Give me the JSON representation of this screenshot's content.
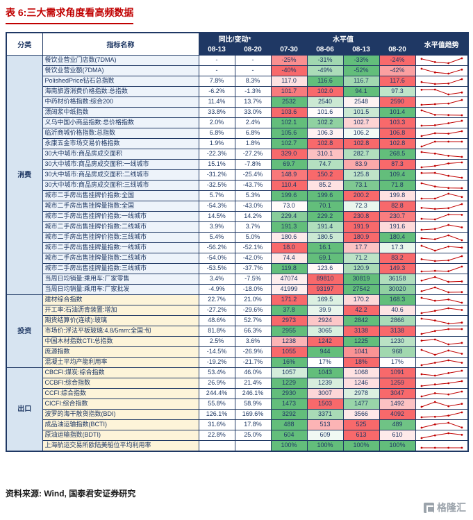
{
  "title": "表 6:三大需求角度看高频数据",
  "source_note": "资料来源: Wind, 国泰君安证券研究",
  "logo_text": "格隆汇",
  "header": {
    "category": "分类",
    "indicator": "指标名称",
    "yoy": "同比/变动*",
    "level": "水平值",
    "trend": "水平值趋势",
    "yoy_dates": [
      "08-13",
      "08-20"
    ],
    "level_dates": [
      "07-30",
      "08-06",
      "08-13",
      "08-20"
    ]
  },
  "colors": {
    "border": "#1F3864",
    "header_bg": "#1F3864",
    "title_red": "#C00000",
    "heat_max": "#F8696B",
    "heat_min": "#63BE7B",
    "spark": "#C00000"
  },
  "chart_data": {
    "type": "table",
    "columns": [
      "分类",
      "指标名称",
      "同比/变动 08-13",
      "同比/变动 08-20",
      "水平值 07-30",
      "水平值 08-06",
      "水平值 08-13",
      "水平值 08-20",
      "水平值趋势"
    ],
    "groups": [
      {
        "name": "消费",
        "cat_bg": "#D7E4F1",
        "row_bg": "#EDF3FA",
        "rows": [
          {
            "indicator": "餐饮业营业门店数(7DMA)",
            "yoy": [
              "-",
              "-"
            ],
            "levels": [
              "-25%",
              "-31%",
              "-33%",
              "-24%"
            ]
          },
          {
            "indicator": "餐饮业营业额(7DMA)",
            "yoy": [
              "-",
              "-"
            ],
            "levels": [
              "-40%",
              "-49%",
              "-52%",
              "-42%"
            ]
          },
          {
            "indicator": "PolishedPrice钻石总指数",
            "yoy": [
              "7.8%",
              "8.3%"
            ],
            "levels": [
              "117.0",
              "116.6",
              "116.7",
              "117.6"
            ]
          },
          {
            "indicator": "海南旅游消费价格指数:总指数",
            "yoy": [
              "-6.2%",
              "-1.3%"
            ],
            "levels": [
              "101.7",
              "102.0",
              "94.1",
              "97.3"
            ]
          },
          {
            "indicator": "中药材价格指数:综合200",
            "yoy": [
              "11.4%",
              "13.7%"
            ],
            "levels": [
              "2532",
              "2540",
              "2548",
              "2590"
            ]
          },
          {
            "indicator": "漂阔浆中纸指数",
            "yoy": [
              "33.8%",
              "33.0%"
            ],
            "levels": [
              "103.6",
              "101.6",
              "101.5",
              "101.4"
            ]
          },
          {
            "indicator": "义乌中国小商品指数:总价格指数",
            "yoy": [
              "2.0%",
              "2.4%"
            ],
            "levels": [
              "102.1",
              "102.2",
              "102.7",
              "103.3"
            ]
          },
          {
            "indicator": "临沂商城价格指数:总指数",
            "yoy": [
              "6.8%",
              "6.8%"
            ],
            "levels": [
              "105.6",
              "106.3",
              "106.2",
              "106.8"
            ]
          },
          {
            "indicator": "永康五金市场交易价格指数",
            "yoy": [
              "1.9%",
              "1.8%"
            ],
            "levels": [
              "102.7",
              "102.8",
              "102.8",
              "102.8"
            ]
          },
          {
            "indicator": "30大中城市:商品房成交面积",
            "yoy": [
              "-22.3%",
              "-27.2%"
            ],
            "levels": [
              "329.0",
              "310.1",
              "282.7",
              "268.5"
            ]
          },
          {
            "indicator": "30大中城市:商品房成交面积:一线城市",
            "yoy": [
              "15.1%",
              "-7.8%"
            ],
            "levels": [
              "69.7",
              "74.7",
              "83.9",
              "87.3"
            ]
          },
          {
            "indicator": "30大中城市:商品房成交面积:二线城市",
            "yoy": [
              "-31.2%",
              "-25.4%"
            ],
            "levels": [
              "148.9",
              "150.2",
              "125.8",
              "109.4"
            ]
          },
          {
            "indicator": "30大中城市:商品房成交面积:三线城市",
            "yoy": [
              "-32.5%",
              "-43.7%"
            ],
            "levels": [
              "110.4",
              "85.2",
              "73.1",
              "71.8"
            ]
          },
          {
            "indicator": "城市二手房出售挂牌价指数:全国",
            "yoy": [
              "5.7%",
              "5.3%"
            ],
            "levels": [
              "199.6",
              "199.6",
              "200.2",
              "199.8"
            ]
          },
          {
            "indicator": "城市二手房出售挂牌量指数:全国",
            "yoy": [
              "-54.3%",
              "-43.0%"
            ],
            "levels": [
              "73.0",
              "70.1",
              "72.3",
              "82.8"
            ]
          },
          {
            "indicator": "城市二手房出售挂牌价指数:一线城市",
            "yoy": [
              "14.5%",
              "14.2%"
            ],
            "levels": [
              "229.4",
              "229.2",
              "230.8",
              "230.7"
            ]
          },
          {
            "indicator": "城市二手房出售挂牌价指数:二线城市",
            "yoy": [
              "3.9%",
              "3.7%"
            ],
            "levels": [
              "191.3",
              "191.4",
              "191.9",
              "191.6"
            ]
          },
          {
            "indicator": "城市二手房出售挂牌价指数:三线城市",
            "yoy": [
              "5.4%",
              "5.0%"
            ],
            "levels": [
              "180.6",
              "180.5",
              "180.9",
              "180.4"
            ]
          },
          {
            "indicator": "城市二手房出售挂牌量指数:一线城市",
            "yoy": [
              "-56.2%",
              "-52.1%"
            ],
            "levels": [
              "18.0",
              "16.1",
              "17.7",
              "17.3"
            ]
          },
          {
            "indicator": "城市二手房出售挂牌量指数:二线城市",
            "yoy": [
              "-54.0%",
              "-42.0%"
            ],
            "levels": [
              "74.4",
              "69.1",
              "71.2",
              "83.2"
            ]
          },
          {
            "indicator": "城市二手房出售挂牌量指数:三线城市",
            "yoy": [
              "-53.5%",
              "-37.7%"
            ],
            "levels": [
              "119.8",
              "123.6",
              "120.9",
              "149.3"
            ]
          },
          {
            "indicator": "当周日均销量:乘用车:厂家零售",
            "yoy": [
              "3.4%",
              "-7.5%"
            ],
            "levels": [
              "47074",
              "89810",
              "30819",
              "36158"
            ]
          },
          {
            "indicator": "当周日均销量:乘用车:厂家批发",
            "yoy": [
              "-4.9%",
              "-18.0%"
            ],
            "levels": [
              "41999",
              "93197",
              "27542",
              "30020"
            ]
          }
        ]
      },
      {
        "name": "投资",
        "cat_bg": "#D7E4F1",
        "row_bg": "#FDF4D9",
        "rows": [
          {
            "indicator": "建材综合指数",
            "yoy": [
              "22.7%",
              "21.0%"
            ],
            "levels": [
              "171.2",
              "169.5",
              "170.2",
              "168.3"
            ]
          },
          {
            "indicator": "开工率:石油沥青装置:增加",
            "yoy": [
              "-27.2%",
              "-29.6%"
            ],
            "levels": [
              "37.8",
              "39.9",
              "42.2",
              "40.6"
            ]
          },
          {
            "indicator": "期货结算价(连续):玻璃",
            "yoy": [
              "48.6%",
              "52.7%"
            ],
            "levels": [
              "2973",
              "2924",
              "2842",
              "2866"
            ]
          },
          {
            "indicator": "市场价:浮法平板玻璃:4.8/5mm:全国:旬",
            "yoy": [
              "81.8%",
              "66.3%"
            ],
            "levels": [
              "2955",
              "3065",
              "3138",
              "3138"
            ]
          },
          {
            "indicator": "中国木材指数CTI:总指数",
            "yoy": [
              "2.5%",
              "3.6%"
            ],
            "levels": [
              "1238",
              "1242",
              "1225",
              "1230"
            ]
          },
          {
            "indicator": "庞源指数",
            "yoy": [
              "-14.5%",
              "-26.9%"
            ],
            "levels": [
              "1055",
              "944",
              "1041",
              "968"
            ]
          },
          {
            "indicator": "混凝土平均产能利用率",
            "yoy": [
              "-19.2%",
              "-21.7%"
            ],
            "levels": [
              "16%",
              "17%",
              "18%",
              "17%"
            ]
          }
        ]
      },
      {
        "name": "出口",
        "cat_bg": "#D7E4F1",
        "row_bg": "#FDF4D9",
        "rows": [
          {
            "indicator": "CBCFI:煤炭:综合指数",
            "yoy": [
              "53.4%",
              "46.0%"
            ],
            "levels": [
              "1057",
              "1043",
              "1068",
              "1091"
            ]
          },
          {
            "indicator": "CCBFI:综合指数",
            "yoy": [
              "26.9%",
              "21.4%"
            ],
            "levels": [
              "1229",
              "1239",
              "1246",
              "1259"
            ]
          },
          {
            "indicator": "CCFI:综合指数",
            "yoy": [
              "244.4%",
              "246.1%"
            ],
            "levels": [
              "2930",
              "3007",
              "2978",
              "3047"
            ]
          },
          {
            "indicator": "CICFI:综合指数",
            "yoy": [
              "55.8%",
              "58.9%"
            ],
            "levels": [
              "1473",
              "1503",
              "1477",
              "1492"
            ]
          },
          {
            "indicator": "波罗的海干散货指数(BDI)",
            "yoy": [
              "126.1%",
              "169.6%"
            ],
            "levels": [
              "3292",
              "3371",
              "3566",
              "4092"
            ]
          },
          {
            "indicator": "成品油运输指数(BCTI)",
            "yoy": [
              "31.6%",
              "17.8%"
            ],
            "levels": [
              "488",
              "513",
              "525",
              "489"
            ]
          },
          {
            "indicator": "原油运输指数(BDTI)",
            "yoy": [
              "22.8%",
              "25.0%"
            ],
            "levels": [
              "604",
              "609",
              "613",
              "610"
            ]
          },
          {
            "indicator": "上海航运交易所欧陆美船位平均利用率",
            "yoy": [
              "",
              ""
            ],
            "levels": [
              "100%",
              "100%",
              "100%",
              "100%"
            ]
          }
        ]
      }
    ]
  }
}
